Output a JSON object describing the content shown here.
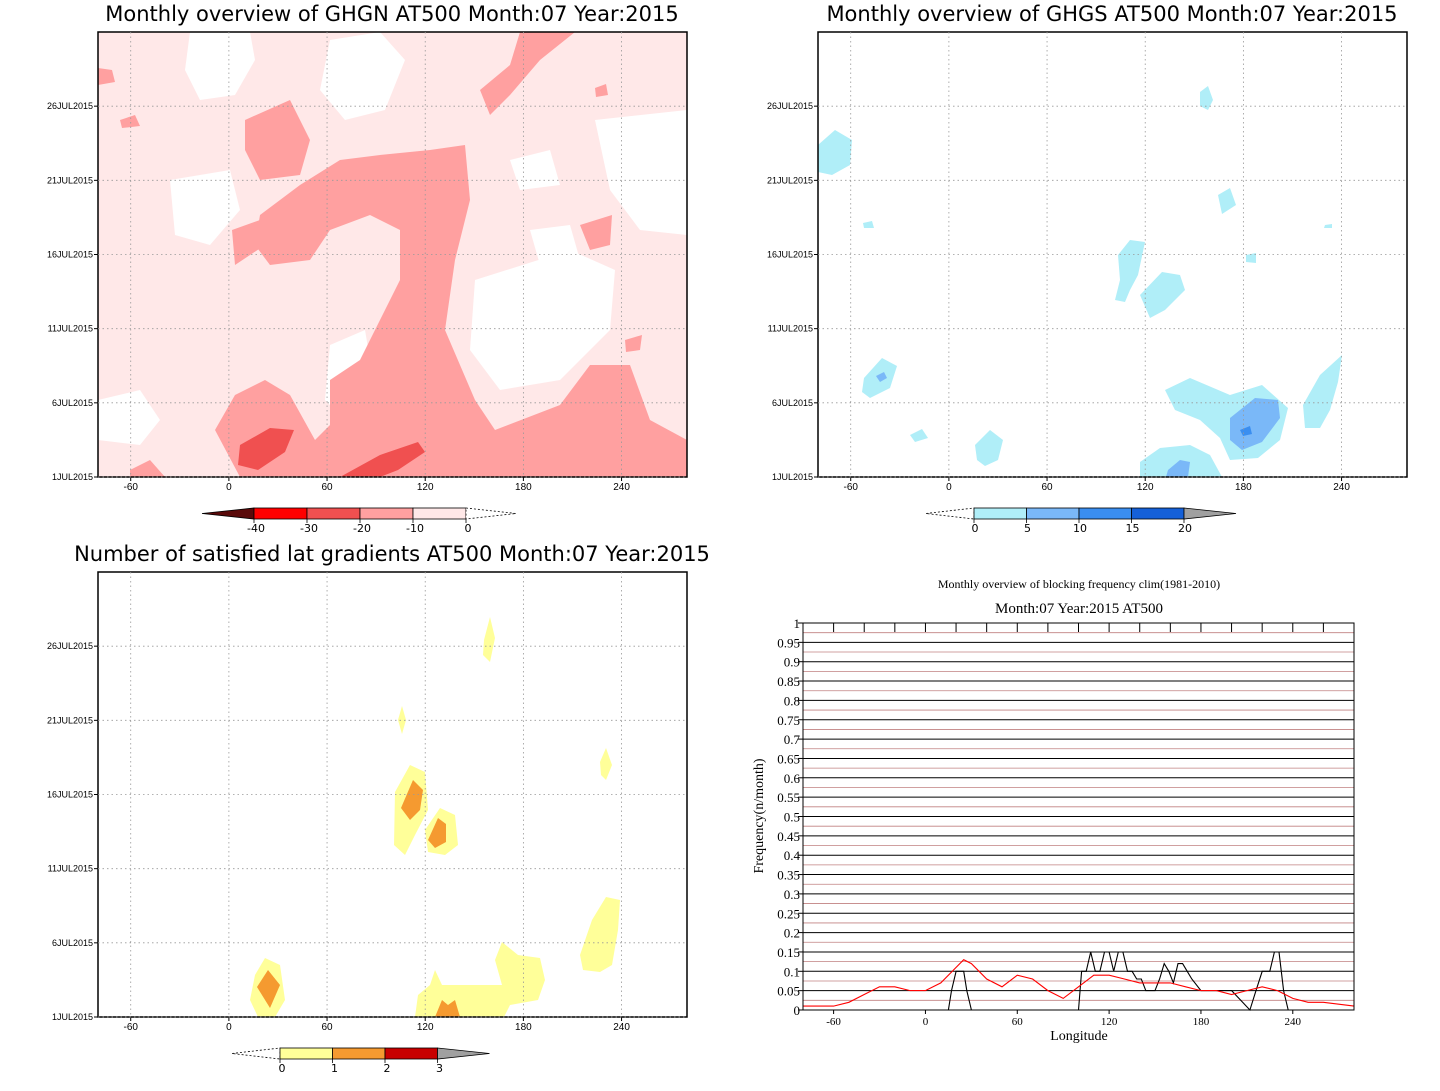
{
  "panels": {
    "ghgn": {
      "title": "Monthly overview of GHGN AT500 Month:07 Year:2015",
      "colorbar": {
        "labels": [
          "-40",
          "-30",
          "-20",
          "-10",
          "0"
        ],
        "colors": [
          "#5a0a0a",
          "#ff0000",
          "#f05050",
          "#ffa0a0",
          "#ffe8e8"
        ]
      }
    },
    "ghgs": {
      "title": "Monthly overview of GHGS AT500 Month:07 Year:2015",
      "colorbar": {
        "labels": [
          "0",
          "5",
          "10",
          "15",
          "20"
        ],
        "colors": [
          "#b0eef8",
          "#7ab8f8",
          "#3a8ef0",
          "#1560d8",
          "#a0a0a0"
        ]
      }
    },
    "lat": {
      "title": "Number of satisfied lat gradients AT500 Month:07 Year:2015",
      "colorbar": {
        "labels": [
          "0",
          "1",
          "2",
          "3"
        ],
        "colors": [
          "#ffff99",
          "#f59a30",
          "#c80000",
          "#a0a0a0"
        ]
      }
    },
    "freq": {
      "title": "Monthly overview of blocking frequency clim(1981-2010)",
      "subtitle": "Month:07 Year:2015  AT500"
    }
  },
  "map_axes": {
    "x_ticks": [
      "-60",
      "0",
      "60",
      "120",
      "180",
      "240"
    ],
    "x_values": [
      -60,
      0,
      60,
      120,
      180,
      240
    ],
    "xlim": [
      -80,
      280
    ],
    "y_ticks": [
      "1JUL2015",
      "6JUL2015",
      "11JUL2015",
      "16JUL2015",
      "21JUL2015",
      "26JUL2015"
    ],
    "y_values": [
      1,
      6,
      11,
      16,
      21,
      26
    ],
    "ylim": [
      1,
      31
    ]
  },
  "chart_data": {
    "type": "line",
    "title": "Monthly overview of blocking frequency clim(1981-2010)",
    "subtitle": "Month:07 Year:2015  AT500",
    "xlabel": "Longitude",
    "ylabel": "Frequency(n/month)",
    "xlim": [
      -80,
      280
    ],
    "ylim": [
      0,
      1
    ],
    "x_ticks": [
      "-60",
      "0",
      "60",
      "120",
      "180",
      "240"
    ],
    "x_tick_values": [
      -60,
      0,
      60,
      120,
      180,
      240
    ],
    "y_ticks": [
      "0",
      "0.05",
      "0.1",
      "0.15",
      "0.2",
      "0.25",
      "0.3",
      "0.35",
      "0.4",
      "0.45",
      "0.5",
      "0.55",
      "0.6",
      "0.65",
      "0.7",
      "0.75",
      "0.8",
      "0.85",
      "0.9",
      "0.95",
      "1"
    ],
    "grid": true,
    "series": [
      {
        "color": "#000000",
        "x": [
          -80,
          15,
          17,
          20,
          25,
          27,
          30,
          33,
          100,
          102,
          105,
          108,
          111,
          114,
          117,
          120,
          123,
          126,
          129,
          132,
          135,
          138,
          141,
          144,
          150,
          153,
          156,
          159,
          162,
          165,
          168,
          171,
          174,
          180,
          190,
          200,
          212,
          216,
          220,
          225,
          228,
          231,
          234,
          237,
          240,
          280
        ],
        "y": [
          0,
          0,
          0.05,
          0.1,
          0.1,
          0.05,
          0,
          0,
          0,
          0.1,
          0.1,
          0.15,
          0.1,
          0.1,
          0.15,
          0.15,
          0.1,
          0.15,
          0.15,
          0.1,
          0.1,
          0.08,
          0.08,
          0.05,
          0.05,
          0.08,
          0.12,
          0.1,
          0.07,
          0.12,
          0.12,
          0.1,
          0.08,
          0.05,
          0.05,
          0.05,
          0,
          0.05,
          0.1,
          0.1,
          0.15,
          0.15,
          0.05,
          0,
          0,
          0
        ]
      },
      {
        "color": "#ff0000",
        "x": [
          -80,
          -70,
          -60,
          -50,
          -40,
          -30,
          -20,
          -10,
          0,
          10,
          20,
          25,
          30,
          40,
          50,
          60,
          70,
          80,
          90,
          100,
          110,
          120,
          130,
          140,
          150,
          160,
          170,
          180,
          190,
          200,
          210,
          220,
          230,
          240,
          250,
          260,
          270,
          280
        ],
        "y": [
          0.01,
          0.01,
          0.01,
          0.02,
          0.04,
          0.06,
          0.06,
          0.05,
          0.05,
          0.07,
          0.11,
          0.13,
          0.12,
          0.08,
          0.06,
          0.09,
          0.08,
          0.05,
          0.03,
          0.06,
          0.09,
          0.09,
          0.08,
          0.07,
          0.07,
          0.07,
          0.06,
          0.05,
          0.05,
          0.04,
          0.05,
          0.06,
          0.05,
          0.03,
          0.02,
          0.02,
          0.015,
          0.01
        ]
      }
    ]
  }
}
